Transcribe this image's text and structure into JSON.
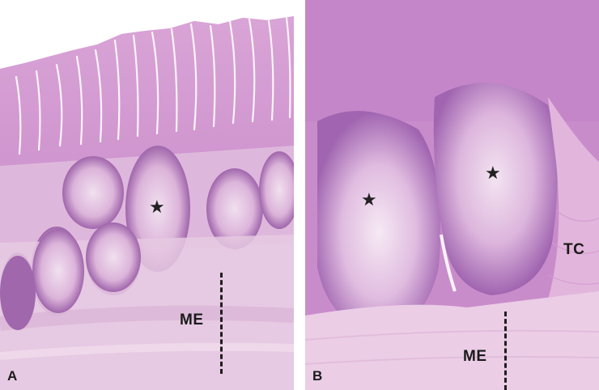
{
  "panels": [
    {
      "letter": "A",
      "labels": {
        "me": "ME"
      },
      "markers": [
        "★"
      ]
    },
    {
      "letter": "B",
      "labels": {
        "me": "ME",
        "tc": "TC"
      },
      "markers": [
        "★",
        "★"
      ]
    }
  ],
  "colors": {
    "lumen": "#ffffff",
    "mucosa": "#d9a6d6",
    "villi": "#cf8fcc",
    "follicle_rim": "#9a5aa8",
    "germinal_center": "#ecd6ea",
    "muscularis": "#e3c2de",
    "connective": "#e8bfe0",
    "text": "#1a1a1a"
  }
}
